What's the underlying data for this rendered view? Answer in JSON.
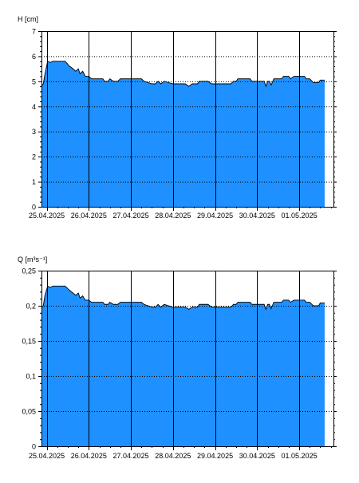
{
  "chart_data": [
    {
      "type": "area",
      "ylabel": "H [cm]",
      "ylim": [
        0,
        7
      ],
      "yticks": [
        0,
        1,
        2,
        3,
        4,
        5,
        6,
        7
      ],
      "ytick_labels": [
        "0",
        "1",
        "2",
        "3",
        "4",
        "5",
        "6",
        "7"
      ],
      "x_start": "2025-04-25T00:00",
      "x_end": "2025-05-01T23:59",
      "date_labels": [
        "25.04.2025",
        "26.04.2025",
        "27.04.2025",
        "28.04.2025",
        "29.04.2025",
        "30.04.2025",
        "01.05.2025"
      ],
      "grid": {
        "x": "day boundaries (solid)",
        "y": "dotted"
      },
      "fill_color": "#1E90FF",
      "points": [
        [
          "2025-04-24T21:00",
          4.8
        ],
        [
          "2025-04-24T22:00",
          4.9
        ],
        [
          "2025-04-24T23:00",
          5.3
        ],
        [
          "2025-04-25T00:30",
          5.8
        ],
        [
          "2025-04-25T02:00",
          5.75
        ],
        [
          "2025-04-25T03:30",
          5.8
        ],
        [
          "2025-04-25T07:00",
          5.8
        ],
        [
          "2025-04-25T10:30",
          5.8
        ],
        [
          "2025-04-25T13:00",
          5.6
        ],
        [
          "2025-04-25T15:00",
          5.5
        ],
        [
          "2025-04-25T16:30",
          5.4
        ],
        [
          "2025-04-25T18:00",
          5.5
        ],
        [
          "2025-04-25T19:00",
          5.3
        ],
        [
          "2025-04-25T20:30",
          5.4
        ],
        [
          "2025-04-25T22:00",
          5.2
        ],
        [
          "2025-04-26T00:00",
          5.2
        ],
        [
          "2025-04-26T01:30",
          5.1
        ],
        [
          "2025-04-26T08:00",
          5.1
        ],
        [
          "2025-04-26T09:00",
          5.0
        ],
        [
          "2025-04-26T11:00",
          5.0
        ],
        [
          "2025-04-26T12:00",
          5.1
        ],
        [
          "2025-04-26T14:00",
          5.0
        ],
        [
          "2025-04-26T16:30",
          5.0
        ],
        [
          "2025-04-26T18:00",
          5.1
        ],
        [
          "2025-04-27T06:00",
          5.1
        ],
        [
          "2025-04-27T07:30",
          5.0
        ],
        [
          "2025-04-27T12:00",
          4.9
        ],
        [
          "2025-04-27T14:00",
          4.9
        ],
        [
          "2025-04-27T15:30",
          5.0
        ],
        [
          "2025-04-27T17:00",
          4.9
        ],
        [
          "2025-04-27T19:00",
          5.0
        ],
        [
          "2025-04-28T00:00",
          4.9
        ],
        [
          "2025-04-28T07:00",
          4.9
        ],
        [
          "2025-04-28T09:00",
          4.8
        ],
        [
          "2025-04-28T11:00",
          4.9
        ],
        [
          "2025-04-28T14:00",
          4.9
        ],
        [
          "2025-04-28T15:00",
          5.0
        ],
        [
          "2025-04-28T20:00",
          5.0
        ],
        [
          "2025-04-28T22:00",
          4.9
        ],
        [
          "2025-04-29T09:00",
          4.9
        ],
        [
          "2025-04-29T10:30",
          5.0
        ],
        [
          "2025-04-29T12:00",
          5.0
        ],
        [
          "2025-04-29T13:00",
          5.1
        ],
        [
          "2025-04-29T20:00",
          5.1
        ],
        [
          "2025-04-29T21:00",
          5.0
        ],
        [
          "2025-04-30T04:00",
          5.0
        ],
        [
          "2025-04-30T05:00",
          4.8
        ],
        [
          "2025-04-30T06:00",
          5.0
        ],
        [
          "2025-04-30T07:00",
          5.0
        ],
        [
          "2025-04-30T08:00",
          4.85
        ],
        [
          "2025-04-30T09:30",
          5.1
        ],
        [
          "2025-04-30T14:00",
          5.1
        ],
        [
          "2025-04-30T15:00",
          5.2
        ],
        [
          "2025-04-30T18:00",
          5.2
        ],
        [
          "2025-04-30T19:00",
          5.1
        ],
        [
          "2025-04-30T21:00",
          5.2
        ],
        [
          "2025-05-01T03:00",
          5.2
        ],
        [
          "2025-05-01T04:00",
          5.1
        ],
        [
          "2025-05-01T06:00",
          5.1
        ],
        [
          "2025-05-01T08:00",
          4.95
        ],
        [
          "2025-05-01T11:00",
          4.95
        ],
        [
          "2025-05-01T12:00",
          5.05
        ],
        [
          "2025-05-01T14:30",
          5.05
        ]
      ]
    },
    {
      "type": "area",
      "ylabel": "Q [m³s⁻¹]",
      "ylim": [
        0,
        0.25
      ],
      "yticks": [
        0,
        0.05,
        0.1,
        0.15,
        0.2,
        0.25
      ],
      "ytick_labels": [
        "0",
        "0,05",
        "0,1",
        "0,15",
        "0,2",
        "0,25"
      ],
      "x_start": "2025-04-25T00:00",
      "x_end": "2025-05-01T23:59",
      "date_labels": [
        "25.04.2025",
        "26.04.2025",
        "27.04.2025",
        "28.04.2025",
        "29.04.2025",
        "30.04.2025",
        "01.05.2025"
      ],
      "grid": {
        "x": "day boundaries (solid)",
        "y": "dotted"
      },
      "fill_color": "#1E90FF",
      "points": [
        [
          "2025-04-24T21:00",
          0.196
        ],
        [
          "2025-04-24T22:00",
          0.2
        ],
        [
          "2025-04-24T23:00",
          0.215
        ],
        [
          "2025-04-25T00:30",
          0.228
        ],
        [
          "2025-04-25T02:00",
          0.226
        ],
        [
          "2025-04-25T03:30",
          0.228
        ],
        [
          "2025-04-25T07:00",
          0.228
        ],
        [
          "2025-04-25T10:30",
          0.228
        ],
        [
          "2025-04-25T13:00",
          0.222
        ],
        [
          "2025-04-25T15:00",
          0.218
        ],
        [
          "2025-04-25T16:30",
          0.215
        ],
        [
          "2025-04-25T18:00",
          0.218
        ],
        [
          "2025-04-25T19:00",
          0.211
        ],
        [
          "2025-04-25T20:30",
          0.214
        ],
        [
          "2025-04-25T22:00",
          0.208
        ],
        [
          "2025-04-26T00:00",
          0.208
        ],
        [
          "2025-04-26T01:30",
          0.205
        ],
        [
          "2025-04-26T08:00",
          0.205
        ],
        [
          "2025-04-26T09:00",
          0.202
        ],
        [
          "2025-04-26T11:00",
          0.202
        ],
        [
          "2025-04-26T12:00",
          0.205
        ],
        [
          "2025-04-26T14:00",
          0.202
        ],
        [
          "2025-04-26T16:30",
          0.202
        ],
        [
          "2025-04-26T18:00",
          0.205
        ],
        [
          "2025-04-27T06:00",
          0.205
        ],
        [
          "2025-04-27T07:30",
          0.202
        ],
        [
          "2025-04-27T12:00",
          0.198
        ],
        [
          "2025-04-27T14:00",
          0.198
        ],
        [
          "2025-04-27T15:30",
          0.202
        ],
        [
          "2025-04-27T17:00",
          0.198
        ],
        [
          "2025-04-27T19:00",
          0.202
        ],
        [
          "2025-04-28T00:00",
          0.198
        ],
        [
          "2025-04-28T07:00",
          0.198
        ],
        [
          "2025-04-28T09:00",
          0.195
        ],
        [
          "2025-04-28T11:00",
          0.198
        ],
        [
          "2025-04-28T14:00",
          0.198
        ],
        [
          "2025-04-28T15:00",
          0.202
        ],
        [
          "2025-04-28T20:00",
          0.202
        ],
        [
          "2025-04-28T22:00",
          0.198
        ],
        [
          "2025-04-29T09:00",
          0.198
        ],
        [
          "2025-04-29T10:30",
          0.202
        ],
        [
          "2025-04-29T12:00",
          0.202
        ],
        [
          "2025-04-29T13:00",
          0.205
        ],
        [
          "2025-04-29T20:00",
          0.205
        ],
        [
          "2025-04-29T21:00",
          0.202
        ],
        [
          "2025-04-30T04:00",
          0.202
        ],
        [
          "2025-04-30T05:00",
          0.195
        ],
        [
          "2025-04-30T06:00",
          0.202
        ],
        [
          "2025-04-30T07:00",
          0.202
        ],
        [
          "2025-04-30T08:00",
          0.196
        ],
        [
          "2025-04-30T09:30",
          0.205
        ],
        [
          "2025-04-30T14:00",
          0.205
        ],
        [
          "2025-04-30T15:00",
          0.208
        ],
        [
          "2025-04-30T18:00",
          0.208
        ],
        [
          "2025-04-30T19:00",
          0.205
        ],
        [
          "2025-04-30T21:00",
          0.208
        ],
        [
          "2025-05-01T03:00",
          0.208
        ],
        [
          "2025-05-01T04:00",
          0.205
        ],
        [
          "2025-05-01T06:00",
          0.205
        ],
        [
          "2025-05-01T08:00",
          0.2
        ],
        [
          "2025-05-01T11:00",
          0.2
        ],
        [
          "2025-05-01T12:00",
          0.204
        ],
        [
          "2025-05-01T14:30",
          0.204
        ]
      ]
    }
  ]
}
